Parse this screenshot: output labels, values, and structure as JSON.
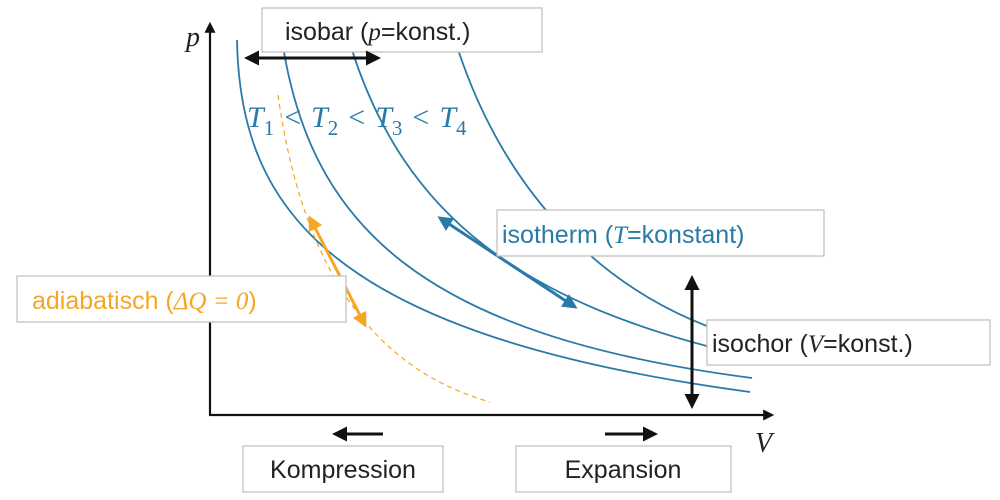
{
  "axes": {
    "y_label": "p",
    "x_label": "V"
  },
  "isobar": {
    "text": "isobar (",
    "symbol": "p",
    "rest": "=konst.)"
  },
  "temperatures": {
    "symbol": "T",
    "indices": [
      "1",
      "2",
      "3",
      "4"
    ],
    "relation": "<"
  },
  "isotherm": {
    "text": "isotherm (",
    "symbol": "T",
    "rest": "=konstant)"
  },
  "adiabatic": {
    "text": "adiabatisch (",
    "formula": "ΔQ = 0",
    "rest": ")"
  },
  "isochor": {
    "text": "isochor (",
    "symbol": "V",
    "rest": "=konst.)"
  },
  "directions": [
    "Kompression",
    "Expansion"
  ]
}
